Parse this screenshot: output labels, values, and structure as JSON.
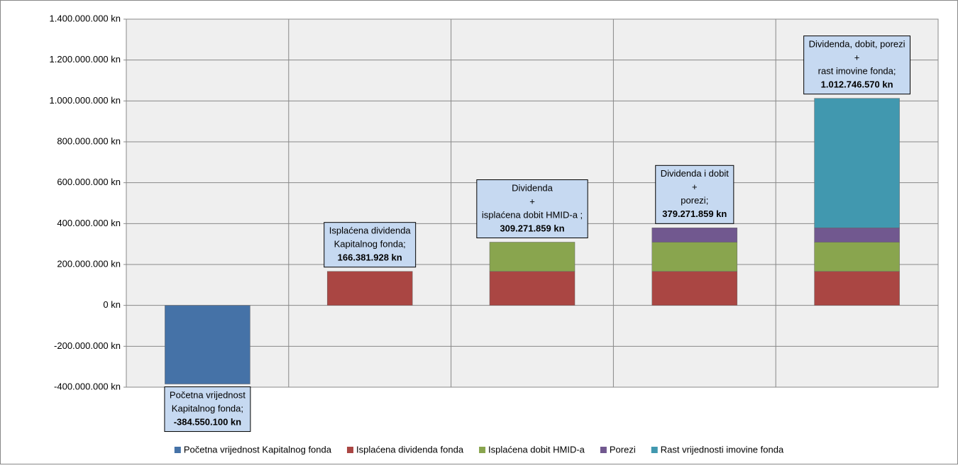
{
  "chart_data": {
    "type": "stacked_bar",
    "categories": [
      null,
      null,
      null,
      null,
      null
    ],
    "series": [
      {
        "name": "Početna vrijednost Kapitalnog fonda",
        "color": "#4572a7",
        "values": [
          -384550100,
          null,
          null,
          null,
          null
        ]
      },
      {
        "name": "Isplaćena dividenda fonda",
        "color": "#aa4643",
        "values": [
          null,
          166381928,
          166381928,
          166381928,
          166381928
        ]
      },
      {
        "name": "Isplaćena dobit HMID-a",
        "color": "#89a54e",
        "values": [
          null,
          null,
          142889931,
          142889931,
          142889931
        ]
      },
      {
        "name": "Porezi",
        "color": "#71588f",
        "values": [
          null,
          null,
          null,
          70000000,
          70000000
        ]
      },
      {
        "name": "Rast vrijednosti imovine fonda",
        "color": "#4198af",
        "values": [
          null,
          null,
          null,
          null,
          633474711
        ]
      }
    ],
    "annotations": [
      {
        "text": [
          "Početna vrijednost",
          "Kapitalnog fonda;"
        ],
        "value": -384550100,
        "label": "-384.550.100  kn"
      },
      {
        "text": [
          "Isplaćena dividenda",
          "Kapitalnog fonda;"
        ],
        "value": 166381928,
        "label": "166.381.928  kn"
      },
      {
        "text": [
          "Dividenda",
          "+",
          "isplaćena dobit HMID-a ;"
        ],
        "value": 309271859,
        "label": "309.271.859  kn"
      },
      {
        "text": [
          "Dividenda  i dobit",
          "+",
          "porezi;"
        ],
        "value": 379271859,
        "label": "379.271.859  kn"
      },
      {
        "text": [
          "Dividenda, dobit, porezi",
          "+",
          "rast imovine fonda;"
        ],
        "value": 1012746570,
        "label": "1.012.746.570  kn"
      }
    ],
    "ylim": [
      -400000000,
      1400000000
    ],
    "yticks": [
      {
        "value": -400000000,
        "label": "-400.000.000 kn"
      },
      {
        "value": -200000000,
        "label": "-200.000.000 kn"
      },
      {
        "value": 0,
        "label": "0 kn"
      },
      {
        "value": 200000000,
        "label": "200.000.000 kn"
      },
      {
        "value": 400000000,
        "label": "400.000.000 kn"
      },
      {
        "value": 600000000,
        "label": "600.000.000 kn"
      },
      {
        "value": 800000000,
        "label": "800.000.000 kn"
      },
      {
        "value": 1000000000,
        "label": "1.000.000.000 kn"
      },
      {
        "value": 1200000000,
        "label": "1.200.000.000 kn"
      },
      {
        "value": 1400000000,
        "label": "1.400.000.000 kn"
      }
    ],
    "grid": true,
    "legend": "bottom"
  }
}
